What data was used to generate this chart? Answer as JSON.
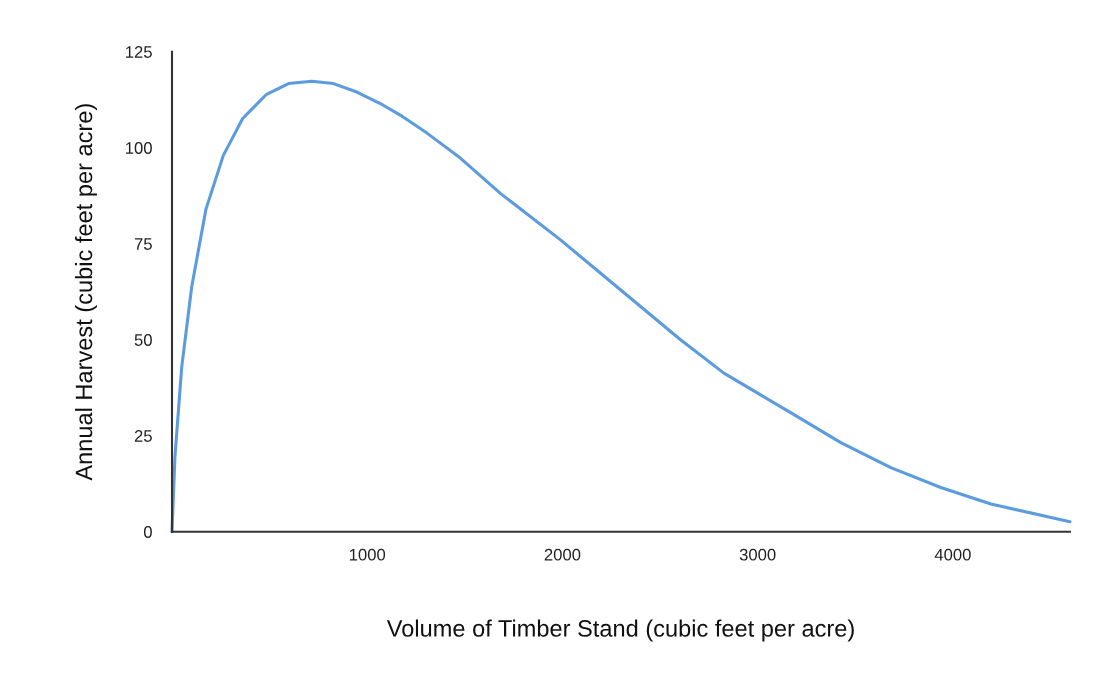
{
  "chart_data": {
    "type": "line",
    "xlabel": "Volume of Timber Stand (cubic feet per acre)",
    "ylabel": "Annual Harvest (cubic feet per acre)",
    "series": [
      {
        "color": "#5b9bde",
        "x": [
          0,
          15,
          50,
          101,
          174,
          263,
          362,
          482,
          597,
          716,
          827,
          947,
          1067,
          1169,
          1306,
          1477,
          1682,
          1990,
          2297,
          2605,
          2827,
          3169,
          3426,
          3682,
          3938,
          4195,
          4600
        ],
        "values": [
          0,
          19.4,
          43,
          63.8,
          84,
          98,
          107.6,
          113.8,
          116.7,
          117.3,
          116.7,
          114.5,
          111.5,
          108.5,
          103.8,
          97.3,
          88.1,
          76,
          63,
          50,
          41.3,
          31,
          23.2,
          16.7,
          11.5,
          7.2,
          2.6
        ]
      }
    ],
    "xlim": [
      0,
      4600
    ],
    "ylim": [
      0,
      125
    ],
    "xticks": [
      1000,
      2000,
      3000,
      4000
    ],
    "yticks": [
      0,
      25,
      50,
      75,
      100,
      125
    ],
    "grid": false
  }
}
